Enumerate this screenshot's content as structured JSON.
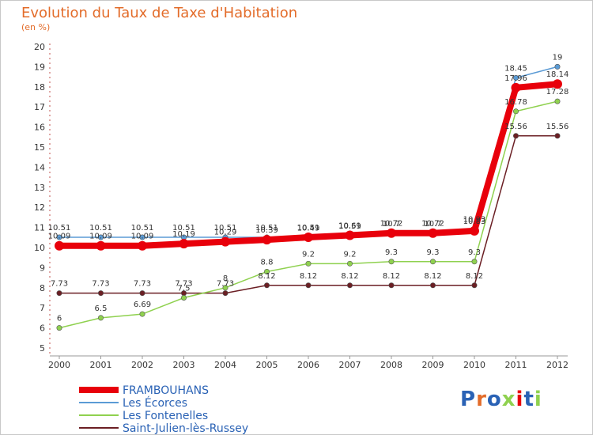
{
  "title": "Evolution du Taux de Taxe d'Habitation",
  "unit": "(en %)",
  "logo": "Proxiti",
  "chart_data": {
    "type": "line",
    "x": [
      2000,
      2001,
      2002,
      2003,
      2004,
      2005,
      2006,
      2007,
      2008,
      2009,
      2010,
      2011,
      2012
    ],
    "xlabels": [
      "2000",
      "2001",
      "2002",
      "2003",
      "2004",
      "2005",
      "2006",
      "2007",
      "2008",
      "2009",
      "2010",
      "2011",
      "2012"
    ],
    "ylim": [
      5,
      20
    ],
    "yticks": [
      5,
      6,
      7,
      8,
      9,
      10,
      11,
      12,
      13,
      14,
      15,
      16,
      17,
      18,
      19,
      20
    ],
    "grid": false,
    "series": [
      {
        "name": "FRAMBOUHANS",
        "color": "#e8000b",
        "values": [
          10.09,
          10.09,
          10.09,
          10.19,
          10.29,
          10.39,
          10.51,
          10.61,
          10.72,
          10.72,
          10.83,
          17.96,
          18.14
        ],
        "labels": [
          "10.09",
          "10.09",
          "10.09",
          "10.19",
          "10.29",
          "10.39",
          "10.51",
          "10.61",
          "10.72",
          "10.72",
          "10.83",
          "17.96",
          "18.14"
        ]
      },
      {
        "name": "Les Écorces",
        "color": "#5b9bd5",
        "values": [
          10.51,
          10.51,
          10.51,
          10.51,
          10.51,
          10.51,
          10.49,
          10.59,
          10.7,
          10.7,
          10.93,
          18.45,
          19
        ],
        "labels": [
          "10.51",
          "10.51",
          "10.51",
          "10.51",
          "10.51",
          "10.51",
          "10.49",
          "10.59",
          "10.7",
          "10.7",
          "10.93",
          "18.45",
          "19"
        ]
      },
      {
        "name": "Les Fontenelles",
        "color": "#8fd14f",
        "values": [
          6,
          6.5,
          6.69,
          7.5,
          8,
          8.8,
          9.2,
          9.2,
          9.3,
          9.3,
          9.3,
          16.78,
          17.28
        ],
        "labels": [
          "6",
          "6.5",
          "6.69",
          "7.5",
          "8",
          "8.8",
          "9.2",
          "9.2",
          "9.3",
          "9.3",
          "9.3",
          "16.78",
          "17.28"
        ]
      },
      {
        "name": "Saint-Julien-lès-Russey",
        "color": "#6b1f24",
        "values": [
          7.73,
          7.73,
          7.73,
          7.73,
          7.73,
          8.12,
          8.12,
          8.12,
          8.12,
          8.12,
          8.12,
          15.56,
          15.56
        ],
        "labels": [
          "7.73",
          "7.73",
          "7.73",
          "7.73",
          "7.73",
          "8.12",
          "8.12",
          "8.12",
          "8.12",
          "8.12",
          "8.12",
          "15.56",
          "15.56"
        ]
      }
    ]
  }
}
